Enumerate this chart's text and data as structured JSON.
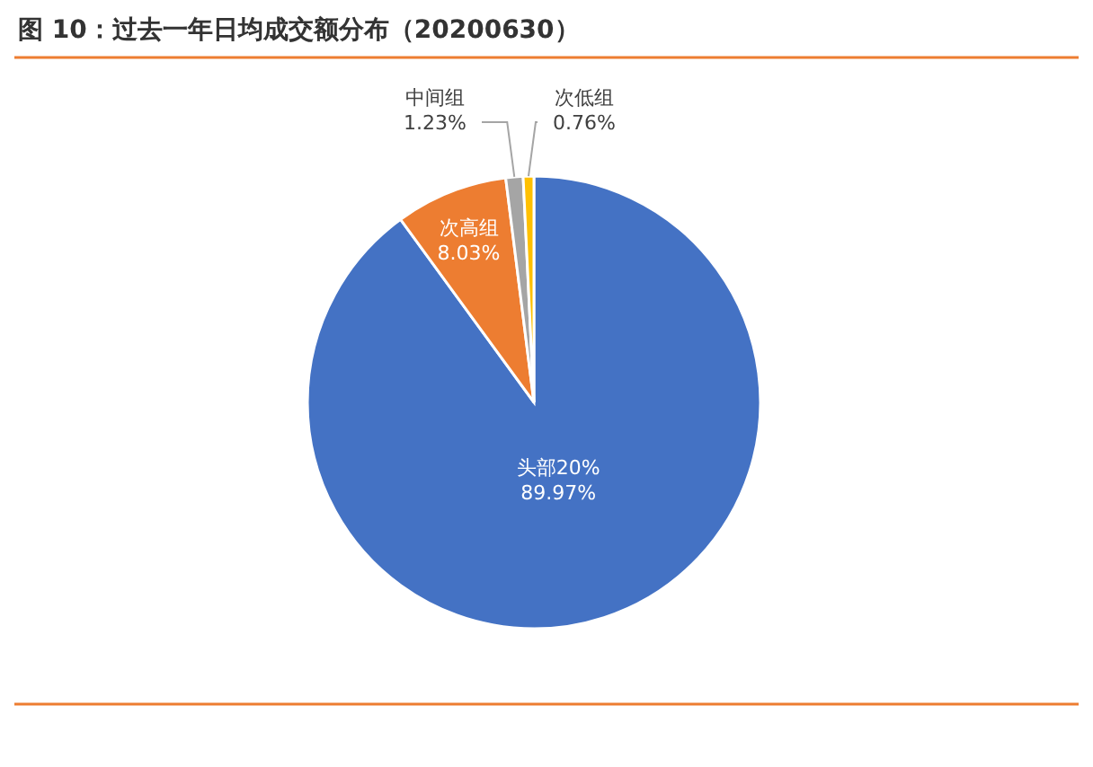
{
  "chart_data": {
    "type": "pie",
    "title": "图 10：过去一年日均成交额分布（20200630）",
    "categories": [
      "头部20%",
      "次高组",
      "中间组",
      "次低组"
    ],
    "values": [
      89.97,
      8.03,
      1.23,
      0.76
    ],
    "colors": [
      "#4472c4",
      "#ed7d31",
      "#a5a5a5",
      "#ffc000"
    ],
    "value_labels": [
      "89.97%",
      "8.03%",
      "1.23%",
      "0.76%"
    ]
  }
}
